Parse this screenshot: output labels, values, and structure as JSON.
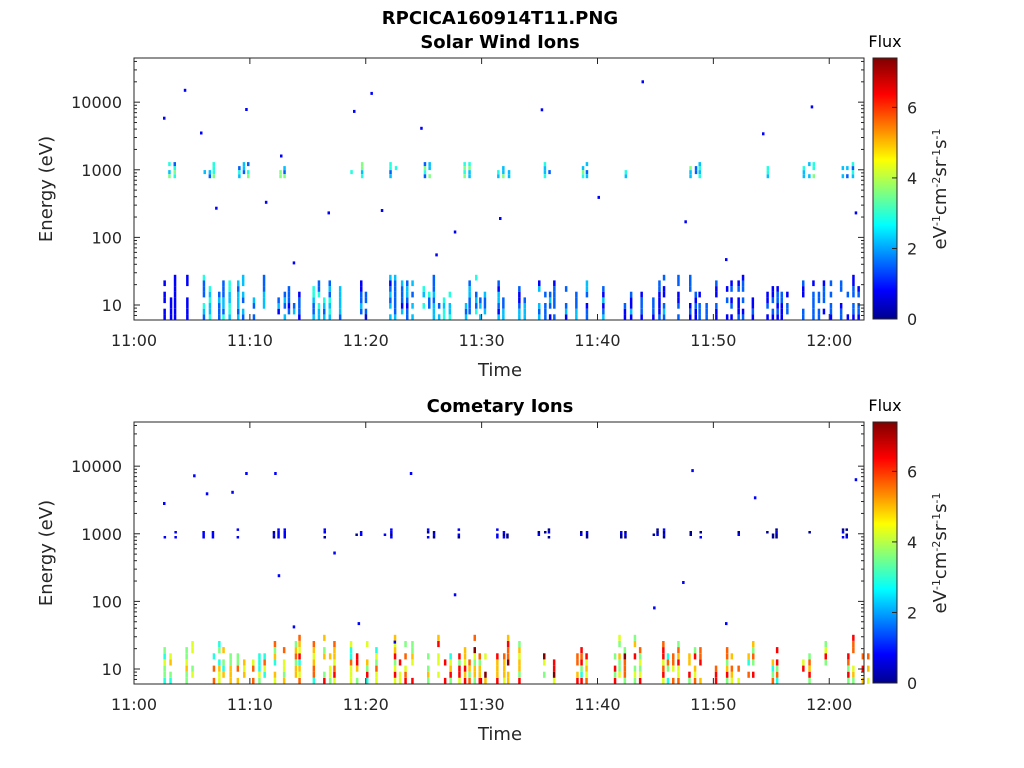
{
  "figure_title": "RPCICA160914T11.PNG",
  "colormap": [
    "#00008f",
    "#0000ff",
    "#0060ff",
    "#00c0ff",
    "#20ffdf",
    "#80ff80",
    "#dfff20",
    "#ffc000",
    "#ff6000",
    "#ff0000",
    "#800000"
  ],
  "chart_data": [
    {
      "type": "heatmap",
      "title": "Solar Wind Ions",
      "xlabel": "Time",
      "ylabel": "Energy (eV)",
      "yscale": "log",
      "xlim": [
        "11:00",
        "12:03"
      ],
      "ylim": [
        6,
        45000
      ],
      "x_ticks": [
        "11:00",
        "11:10",
        "11:20",
        "11:30",
        "11:40",
        "11:50",
        "12:00"
      ],
      "y_ticks": [
        "10",
        "100",
        "1000",
        "10000"
      ],
      "colorbar": {
        "title": "Flux",
        "label": "eV-1cm-2sr-1s-1",
        "range": [
          0,
          7.4
        ],
        "ticks": [
          "0",
          "2",
          "4",
          "6"
        ]
      },
      "peak_scan_times_min": [
        3.5,
        6.8,
        9.8,
        12.9,
        16.3,
        19.5,
        22.5,
        25.8,
        28.9,
        32.2,
        35.8,
        39.0,
        42.3,
        45.6,
        48.8,
        52.0,
        55.4,
        58.6,
        61.9
      ],
      "low_energy_band": {
        "energy": [
          6,
          28
        ],
        "flux": [
          1.2,
          2.8,
          2.3,
          2.0,
          2.5,
          2.0,
          2.3,
          2.7,
          2.4,
          2.2,
          2.1,
          2.0,
          1.8,
          1.8,
          1.7,
          1.6,
          1.6,
          1.7,
          1.6
        ]
      },
      "peak_band": {
        "energy": [
          750,
          1300
        ],
        "flux": [
          3.2,
          3.3,
          3.3,
          3.4,
          3.5,
          3.3,
          3.3,
          3.4,
          3.4,
          3.3,
          3.3,
          3.1,
          3.1,
          3.0,
          3.0,
          3.0,
          3.1,
          3.0,
          3.0
        ]
      },
      "sporadic_counts": [
        {
          "t": 2.5,
          "e": 5800
        },
        {
          "t": 4.3,
          "e": 15000
        },
        {
          "t": 5.7,
          "e": 3500
        },
        {
          "t": 7.0,
          "e": 270
        },
        {
          "t": 9.6,
          "e": 7800
        },
        {
          "t": 11.3,
          "e": 330
        },
        {
          "t": 12.6,
          "e": 1600
        },
        {
          "t": 13.7,
          "e": 42
        },
        {
          "t": 16.7,
          "e": 230
        },
        {
          "t": 18.9,
          "e": 7300
        },
        {
          "t": 20.4,
          "e": 13500
        },
        {
          "t": 21.3,
          "e": 250
        },
        {
          "t": 24.7,
          "e": 4100
        },
        {
          "t": 26.0,
          "e": 55
        },
        {
          "t": 27.6,
          "e": 120
        },
        {
          "t": 31.5,
          "e": 190
        },
        {
          "t": 35.1,
          "e": 7700
        },
        {
          "t": 40.0,
          "e": 390
        },
        {
          "t": 43.8,
          "e": 20000
        },
        {
          "t": 47.5,
          "e": 170
        },
        {
          "t": 51.0,
          "e": 47
        },
        {
          "t": 54.2,
          "e": 3400
        },
        {
          "t": 58.4,
          "e": 8500
        },
        {
          "t": 62.2,
          "e": 230
        }
      ]
    },
    {
      "type": "heatmap",
      "title": "Cometary Ions",
      "xlabel": "Time",
      "ylabel": "Energy (eV)",
      "yscale": "log",
      "xlim": [
        "11:00",
        "12:03"
      ],
      "ylim": [
        6,
        45000
      ],
      "x_ticks": [
        "11:00",
        "11:10",
        "11:20",
        "11:30",
        "11:40",
        "11:50",
        "12:00"
      ],
      "y_ticks": [
        "10",
        "100",
        "1000",
        "10000"
      ],
      "colorbar": {
        "title": "Flux",
        "label": "eV-1cm-2sr-1s-1",
        "range": [
          0,
          7.4
        ],
        "ticks": [
          "0",
          "2",
          "4",
          "6"
        ]
      },
      "peak_scan_times_min": [
        3.5,
        6.8,
        9.8,
        12.9,
        16.3,
        19.5,
        22.5,
        25.8,
        28.9,
        32.2,
        35.8,
        39.0,
        42.3,
        45.6,
        48.8,
        52.0,
        55.4,
        58.6,
        61.9
      ],
      "low_energy_band": {
        "energy": [
          6,
          32
        ],
        "flux": [
          4.6,
          4.9,
          5.0,
          5.3,
          5.6,
          5.7,
          5.9,
          6.0,
          6.2,
          6.1,
          6.4,
          6.0,
          6.1,
          5.9,
          6.0,
          5.6,
          5.8,
          5.9,
          5.7
        ]
      },
      "peak_band": {
        "energy": [
          850,
          1200
        ],
        "flux": [
          1.0,
          1.0,
          0.9,
          0.9,
          0.9,
          1.0,
          0.9,
          0.9,
          0.8,
          0.9,
          0.8,
          0.8,
          0.7,
          0.8,
          0.8,
          0.8,
          0.8,
          0.8,
          0.8
        ]
      },
      "sporadic_counts": [
        {
          "t": 2.5,
          "e": 2800
        },
        {
          "t": 5.1,
          "e": 7200
        },
        {
          "t": 6.2,
          "e": 3900
        },
        {
          "t": 8.4,
          "e": 4100
        },
        {
          "t": 9.6,
          "e": 7800
        },
        {
          "t": 12.1,
          "e": 7800
        },
        {
          "t": 12.4,
          "e": 240
        },
        {
          "t": 13.7,
          "e": 42
        },
        {
          "t": 17.2,
          "e": 520
        },
        {
          "t": 19.3,
          "e": 47
        },
        {
          "t": 22.4,
          "e": 25
        },
        {
          "t": 23.8,
          "e": 7800
        },
        {
          "t": 27.6,
          "e": 125
        },
        {
          "t": 44.8,
          "e": 80
        },
        {
          "t": 47.3,
          "e": 190
        },
        {
          "t": 48.1,
          "e": 8600
        },
        {
          "t": 51.0,
          "e": 47
        },
        {
          "t": 53.5,
          "e": 3400
        },
        {
          "t": 62.2,
          "e": 6300
        }
      ]
    }
  ]
}
